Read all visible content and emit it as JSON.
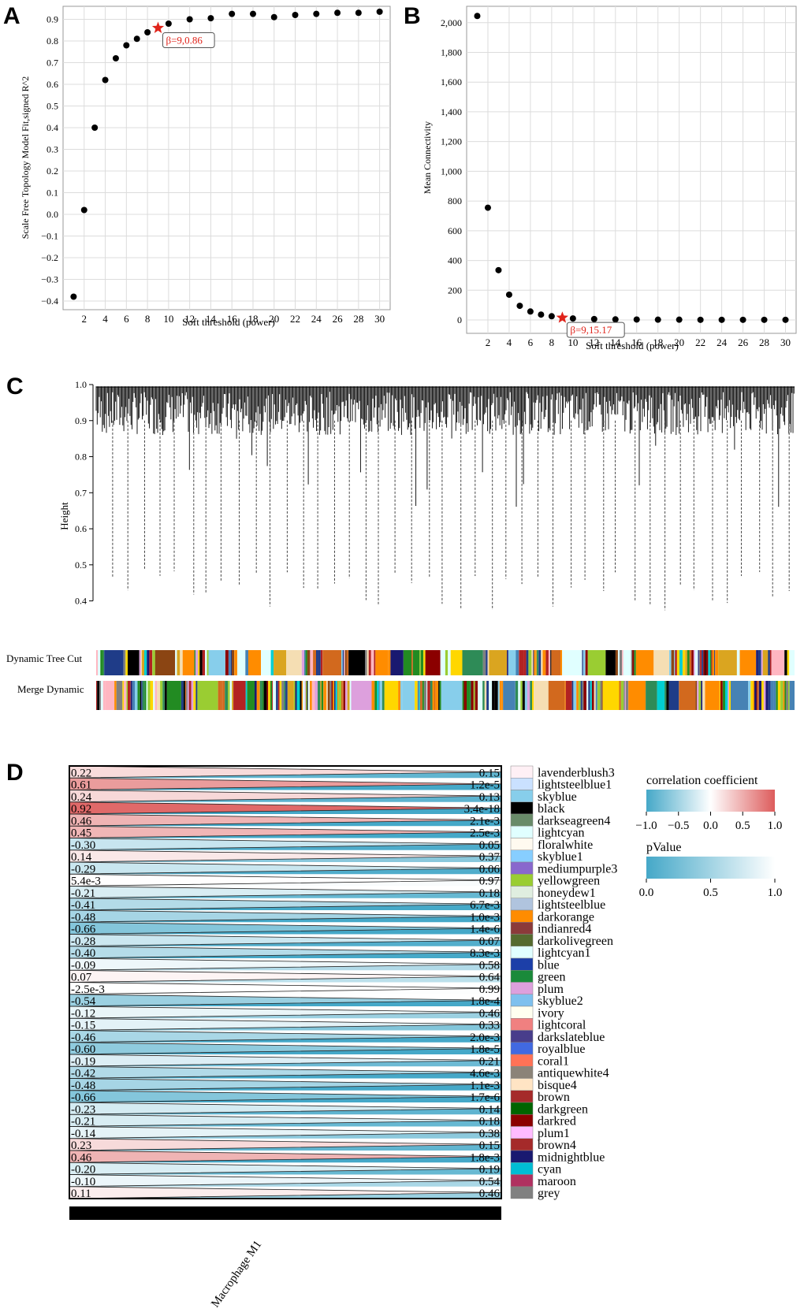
{
  "panels": {
    "a": "A",
    "b": "B",
    "c": "C",
    "d": "D"
  },
  "colors": {
    "point": "#000000",
    "star": "#e0241b",
    "pos": "#dd5c5c",
    "neg": "#45a8c8",
    "grid": "#dcdcdc"
  },
  "chart_data": [
    {
      "id": "A",
      "type": "scatter",
      "xlabel": "Soft threshold (power)",
      "ylabel": "Scale Free Topology Model Fit,signed R^2",
      "xlim": [
        0,
        31
      ],
      "ylim": [
        -0.44,
        0.96
      ],
      "xticks": [
        2,
        4,
        6,
        8,
        10,
        12,
        14,
        16,
        18,
        20,
        22,
        24,
        26,
        28,
        30
      ],
      "yticks": [
        -0.4,
        -0.3,
        -0.2,
        -0.1,
        0.0,
        0.1,
        0.2,
        0.3,
        0.4,
        0.5,
        0.6,
        0.7,
        0.8,
        0.9
      ],
      "ytick_labels": [
        "−0.4",
        "−0.3",
        "−0.2",
        "−0.1",
        "0.0",
        "0.1",
        "0.2",
        "0.3",
        "0.4",
        "0.5",
        "0.6",
        "0.7",
        "0.8",
        "0.9"
      ],
      "x": [
        1,
        2,
        3,
        4,
        5,
        6,
        7,
        8,
        10,
        12,
        14,
        16,
        18,
        20,
        22,
        24,
        26,
        28,
        30
      ],
      "y": [
        -0.38,
        0.02,
        0.4,
        0.62,
        0.72,
        0.78,
        0.81,
        0.84,
        0.88,
        0.9,
        0.905,
        0.925,
        0.925,
        0.91,
        0.92,
        0.925,
        0.93,
        0.93,
        0.935
      ],
      "highlight": {
        "x": 9,
        "y": 0.86,
        "label": "β=9,0.86"
      }
    },
    {
      "id": "B",
      "type": "scatter",
      "xlabel": "Soft threshold (power)",
      "ylabel": "Mean Connectivity",
      "xlim": [
        0,
        31
      ],
      "ylim": [
        -90,
        2110
      ],
      "xticks": [
        2,
        4,
        6,
        8,
        10,
        12,
        14,
        16,
        18,
        20,
        22,
        24,
        26,
        28,
        30
      ],
      "yticks": [
        0,
        200,
        400,
        600,
        800,
        1000,
        1200,
        1400,
        1600,
        1800,
        2000
      ],
      "ytick_labels": [
        "0",
        "200",
        "400",
        "600",
        "800",
        "1,000",
        "1,200",
        "1,400",
        "1,600",
        "1,800",
        "2,000"
      ],
      "x": [
        1,
        2,
        3,
        4,
        5,
        6,
        7,
        8,
        10,
        12,
        14,
        16,
        18,
        20,
        22,
        24,
        26,
        28,
        30
      ],
      "y": [
        2045,
        755,
        335,
        170,
        95,
        57,
        36,
        25,
        10,
        6,
        4,
        3,
        2,
        2,
        1,
        1,
        1,
        1,
        1
      ],
      "highlight": {
        "x": 9,
        "y": 15.17,
        "label": "β=9,15.17"
      }
    },
    {
      "id": "C",
      "type": "dendrogram",
      "ylabel": "Height",
      "ylim": [
        0.34,
        1.0
      ],
      "yticks": [
        1.0,
        0.9,
        0.8,
        0.7,
        0.6,
        0.5,
        0.4
      ],
      "ytick_labels": [
        "1.0",
        "0.9",
        "0.8",
        "0.7",
        "0.6",
        "0.5",
        "0.4"
      ],
      "rows": [
        "Dynamic Tree Cut",
        "Merge Dynamic"
      ]
    },
    {
      "id": "D",
      "type": "heatmap",
      "xlabel": "Macrophage M1",
      "legend_title_corr": "correlation coefficient",
      "corr_ticks": [
        "−1.0",
        "−0.5",
        "0.0",
        "0.5",
        "1.0"
      ],
      "legend_title_p": "pValue",
      "p_ticks": [
        "0.0",
        "0.5",
        "1.0"
      ],
      "modules": [
        "lavenderblush3",
        "lightsteelblue1",
        "skyblue",
        "black",
        "darkseagreen4",
        "lightcyan",
        "floralwhite",
        "skyblue1",
        "mediumpurple3",
        "yellowgreen",
        "honeydew1",
        "lightsteelblue",
        "darkorange",
        "indianred4",
        "darkolivegreen",
        "lightcyan1",
        "blue",
        "green",
        "plum",
        "skyblue2",
        "ivory",
        "lightcoral",
        "darkslateblue",
        "royalblue",
        "coral1",
        "antiquewhite4",
        "bisque4",
        "brown",
        "darkgreen",
        "darkred",
        "plum1",
        "brown4",
        "midnightblue",
        "cyan",
        "maroon",
        "grey"
      ],
      "module_colors": [
        "#fff0f5",
        "#cae1ff",
        "#87ceeb",
        "#000000",
        "#698b69",
        "#e0ffff",
        "#fffaf0",
        "#87ceff",
        "#8968cd",
        "#9acd32",
        "#e0eee0",
        "#b0c4de",
        "#ff8c00",
        "#8b3a3a",
        "#556b2f",
        "#e0ffff",
        "#1c3fa8",
        "#1a8a3a",
        "#dda0dd",
        "#7ec0ee",
        "#fffff0",
        "#f08080",
        "#483d8b",
        "#4169e1",
        "#ff7256",
        "#8b8378",
        "#ffe4c4",
        "#a52a2a",
        "#006400",
        "#8b0000",
        "#ffbbff",
        "#a52a2a",
        "#191970",
        "#00bcd4",
        "#b03060",
        "#808080"
      ],
      "corr_labels": [
        "0.22",
        "0.61",
        "0.24",
        "0.92",
        "0.46",
        "0.45",
        "-0.30",
        "0.14",
        "-0.29",
        "5.4e-3",
        "-0.21",
        "-0.41",
        "-0.48",
        "-0.66",
        "-0.28",
        "-0.40",
        "-0.09",
        "0.07",
        "-2.5e-3",
        "-0.54",
        "-0.12",
        "-0.15",
        "-0.46",
        "-0.60",
        "-0.19",
        "-0.42",
        "-0.48",
        "-0.66",
        "-0.23",
        "-0.21",
        "-0.14",
        "0.23",
        "0.46",
        "-0.20",
        "-0.10",
        "0.11"
      ],
      "corr_values": [
        0.22,
        0.61,
        0.24,
        0.92,
        0.46,
        0.45,
        -0.3,
        0.14,
        -0.29,
        0.0054,
        -0.21,
        -0.41,
        -0.48,
        -0.66,
        -0.28,
        -0.4,
        -0.09,
        0.07,
        -0.0025,
        -0.54,
        -0.12,
        -0.15,
        -0.46,
        -0.6,
        -0.19,
        -0.42,
        -0.48,
        -0.66,
        -0.23,
        -0.21,
        -0.14,
        0.23,
        0.46,
        -0.2,
        -0.1,
        0.11
      ],
      "p_labels": [
        "0.15",
        "1.2e-5",
        "0.13",
        "3.4e-18",
        "2.1e-3",
        "2.5e-3",
        "0.05",
        "0.37",
        "0.06",
        "0.97",
        "0.18",
        "6.7e-3",
        "1.0e-3",
        "1.4e-6",
        "0.07",
        "8.3e-3",
        "0.58",
        "0.64",
        "0.99",
        "1.8e-4",
        "0.46",
        "0.33",
        "2.0e-3",
        "1.8e-5",
        "0.21",
        "4.6e-3",
        "1.1e-3",
        "1.7e-6",
        "0.14",
        "0.18",
        "0.38",
        "0.15",
        "1.8e-3",
        "0.19",
        "0.54",
        "0.46"
      ],
      "p_values": [
        0.15,
        1.2e-05,
        0.13,
        3.4e-18,
        0.0021,
        0.0025,
        0.05,
        0.37,
        0.06,
        0.97,
        0.18,
        0.0067,
        0.001,
        1.4e-06,
        0.07,
        0.0083,
        0.58,
        0.64,
        0.99,
        0.00018,
        0.46,
        0.33,
        0.002,
        1.8e-05,
        0.21,
        0.0046,
        0.0011,
        1.7e-06,
        0.14,
        0.18,
        0.38,
        0.15,
        0.0018,
        0.19,
        0.54,
        0.46
      ]
    }
  ]
}
